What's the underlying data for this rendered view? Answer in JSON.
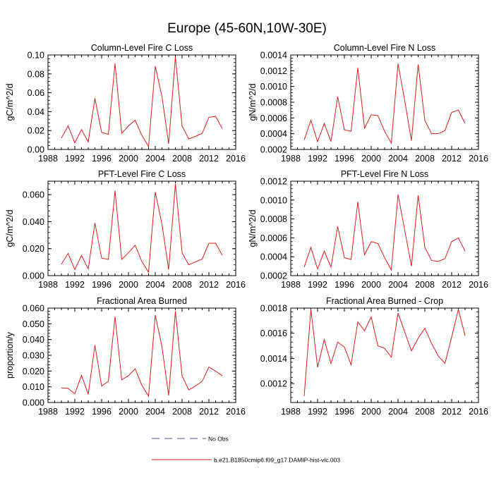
{
  "figure": {
    "title": "Europe (45-60N,10W-30E)"
  },
  "chart_data": [
    {
      "type": "line",
      "title": "Column-Level Fire C Loss",
      "xlabel": "",
      "ylabel": "gC/m^2/d",
      "xlim": [
        1988,
        2016
      ],
      "ylim": [
        0,
        0.1
      ],
      "xticks": [
        "1988",
        "1992",
        "1996",
        "2000",
        "2004",
        "2008",
        "2012",
        "2016"
      ],
      "yticks": [
        "0.00",
        "0.02",
        "0.04",
        "0.06",
        "0.08",
        "0.10"
      ],
      "x": [
        1990,
        1991,
        1992,
        1993,
        1994,
        1995,
        1996,
        1997,
        1998,
        1999,
        2000,
        2001,
        2002,
        2003,
        2004,
        2005,
        2006,
        2007,
        2008,
        2009,
        2010,
        2011,
        2012,
        2013,
        2014
      ],
      "series": [
        {
          "name": "b.e21.B1850cmip6.f09_g17.DAMIP-hist-vlc.003",
          "color": "#e41a1c",
          "values": [
            0.012,
            0.025,
            0.007,
            0.021,
            0.008,
            0.054,
            0.018,
            0.016,
            0.091,
            0.017,
            0.025,
            0.031,
            0.015,
            0.003,
            0.088,
            0.056,
            0.006,
            0.098,
            0.025,
            0.011,
            0.014,
            0.017,
            0.034,
            0.035,
            0.022
          ]
        }
      ]
    },
    {
      "type": "line",
      "title": "Column-Level Fire N Loss",
      "xlabel": "",
      "ylabel": "gN/m^2/d",
      "xlim": [
        1988,
        2016
      ],
      "ylim": [
        0.0002,
        0.0014
      ],
      "xticks": [
        "1988",
        "1992",
        "1996",
        "2000",
        "2004",
        "2008",
        "2012",
        "2016"
      ],
      "yticks": [
        "0.0002",
        "0.0004",
        "0.0006",
        "0.0008",
        "0.0010",
        "0.0012",
        "0.0014"
      ],
      "x": [
        1990,
        1991,
        1992,
        1993,
        1994,
        1995,
        1996,
        1997,
        1998,
        1999,
        2000,
        2001,
        2002,
        2003,
        2004,
        2005,
        2006,
        2007,
        2008,
        2009,
        2010,
        2011,
        2012,
        2013,
        2014
      ],
      "series": [
        {
          "name": "b.e21.B1850cmip6.f09_g17.DAMIP-hist-vlc.003",
          "color": "#e41a1c",
          "values": [
            0.00032,
            0.00057,
            0.0003,
            0.00053,
            0.0003,
            0.00087,
            0.00045,
            0.00043,
            0.00124,
            0.00047,
            0.00064,
            0.00063,
            0.00043,
            0.00028,
            0.00129,
            0.00082,
            0.00031,
            0.00128,
            0.00057,
            0.0004,
            0.0004,
            0.00044,
            0.00067,
            0.0007,
            0.00053
          ]
        }
      ]
    },
    {
      "type": "line",
      "title": "PFT-Level Fire C Loss",
      "xlabel": "",
      "ylabel": "gC/m^2/d",
      "xlim": [
        1988,
        2016
      ],
      "ylim": [
        0,
        0.07
      ],
      "xticks": [
        "1988",
        "1992",
        "1996",
        "2000",
        "2004",
        "2008",
        "2012",
        "2016"
      ],
      "yticks": [
        "0.000",
        "0.020",
        "0.040",
        "0.060"
      ],
      "ytickvals": [
        0,
        0.02,
        0.04,
        0.06
      ],
      "x": [
        1990,
        1991,
        1992,
        1993,
        1994,
        1995,
        1996,
        1997,
        1998,
        1999,
        2000,
        2001,
        2002,
        2003,
        2004,
        2005,
        2006,
        2007,
        2008,
        2009,
        2010,
        2011,
        2012,
        2013,
        2014
      ],
      "series": [
        {
          "name": "b.e21.B1850cmip6.f09_g17.DAMIP-hist-vlc.003",
          "color": "#e41a1c",
          "values": [
            0.0085,
            0.0165,
            0.0045,
            0.015,
            0.005,
            0.039,
            0.013,
            0.012,
            0.063,
            0.012,
            0.017,
            0.0225,
            0.0105,
            0.0025,
            0.062,
            0.038,
            0.0045,
            0.068,
            0.017,
            0.008,
            0.0102,
            0.0123,
            0.024,
            0.024,
            0.015
          ]
        }
      ]
    },
    {
      "type": "line",
      "title": "PFT-Level Fire N Loss",
      "xlabel": "",
      "ylabel": "gN/m^2/d",
      "xlim": [
        1988,
        2016
      ],
      "ylim": [
        0.0002,
        0.0012
      ],
      "xticks": [
        "1988",
        "1992",
        "1996",
        "2000",
        "2004",
        "2008",
        "2012",
        "2016"
      ],
      "yticks": [
        "0.0002",
        "0.0004",
        "0.0006",
        "0.0008",
        "0.0010",
        "0.0012"
      ],
      "x": [
        1990,
        1991,
        1992,
        1993,
        1994,
        1995,
        1996,
        1997,
        1998,
        1999,
        2000,
        2001,
        2002,
        2003,
        2004,
        2005,
        2006,
        2007,
        2008,
        2009,
        2010,
        2011,
        2012,
        2013,
        2014
      ],
      "series": [
        {
          "name": "b.e21.B1850cmip6.f09_g17.DAMIP-hist-vlc.003",
          "color": "#e41a1c",
          "values": [
            0.00029,
            0.0005,
            0.00027,
            0.00046,
            0.00029,
            0.00072,
            0.00039,
            0.00037,
            0.00098,
            0.00042,
            0.00056,
            0.00054,
            0.00039,
            0.00026,
            0.00106,
            0.00068,
            0.0003,
            0.00105,
            0.0005,
            0.00036,
            0.00035,
            0.00038,
            0.00056,
            0.0006,
            0.00046
          ]
        }
      ]
    },
    {
      "type": "line",
      "title": "Fractional Area Burned",
      "xlabel": "",
      "ylabel": "proportion/y",
      "xlim": [
        1988,
        2016
      ],
      "ylim": [
        0,
        0.06
      ],
      "xticks": [
        "1988",
        "1992",
        "1996",
        "2000",
        "2004",
        "2008",
        "2012",
        "2016"
      ],
      "yticks": [
        "0.000",
        "0.010",
        "0.020",
        "0.030",
        "0.040",
        "0.050",
        "0.060"
      ],
      "x": [
        1990,
        1991,
        1992,
        1993,
        1994,
        1995,
        1996,
        1997,
        1998,
        1999,
        2000,
        2001,
        2002,
        2003,
        2004,
        2005,
        2006,
        2007,
        2008,
        2009,
        2010,
        2011,
        2012,
        2013,
        2014
      ],
      "series": [
        {
          "name": "b.e21.B1850cmip6.f09_g17.DAMIP-hist-vlc.003",
          "color": "#e41a1c",
          "values": [
            0.0093,
            0.009,
            0.0055,
            0.0173,
            0.0053,
            0.0365,
            0.0105,
            0.0135,
            0.0545,
            0.0145,
            0.017,
            0.0215,
            0.011,
            0.004,
            0.0555,
            0.0355,
            0.0045,
            0.058,
            0.017,
            0.008,
            0.0105,
            0.0135,
            0.0225,
            0.02,
            0.017
          ]
        }
      ]
    },
    {
      "type": "line",
      "title": "Fractional Area Burned - Crop",
      "xlabel": "",
      "ylabel": "",
      "xlim": [
        1988,
        2016
      ],
      "ylim": [
        0.00105,
        0.0018
      ],
      "xticks": [
        "1988",
        "1992",
        "1996",
        "2000",
        "2004",
        "2008",
        "2012",
        "2016"
      ],
      "yticks": [
        "0.0012",
        "0.0014",
        "0.0016",
        "0.0018"
      ],
      "ytickvals": [
        0.0012,
        0.0014,
        0.0016,
        0.0018
      ],
      "x": [
        1990,
        1991,
        1992,
        1993,
        1994,
        1995,
        1996,
        1997,
        1998,
        1999,
        2000,
        2001,
        2002,
        2003,
        2004,
        2005,
        2006,
        2007,
        2008,
        2009,
        2010,
        2011,
        2012,
        2013,
        2014
      ],
      "series": [
        {
          "name": "b.e21.B1850cmip6.f09_g17.DAMIP-hist-vlc.003",
          "color": "#e41a1c",
          "values": [
            0.0011,
            0.00179,
            0.00133,
            0.00155,
            0.00136,
            0.00153,
            0.00149,
            0.00135,
            0.00169,
            0.00162,
            0.00173,
            0.0015,
            0.00148,
            0.00141,
            0.00176,
            0.00161,
            0.00146,
            0.00156,
            0.00164,
            0.00152,
            0.00142,
            0.00136,
            0.00157,
            0.00179,
            0.00158
          ]
        }
      ]
    }
  ],
  "legend": {
    "position": "bottom-center",
    "items": [
      {
        "label": "No Obs",
        "color": "#5050a0",
        "style": "dashed"
      },
      {
        "label": "b.e21.B1850cmip6.f09_g17.DAMIP-hist-vlc.003",
        "color": "#e41a1c",
        "style": "solid"
      }
    ]
  }
}
